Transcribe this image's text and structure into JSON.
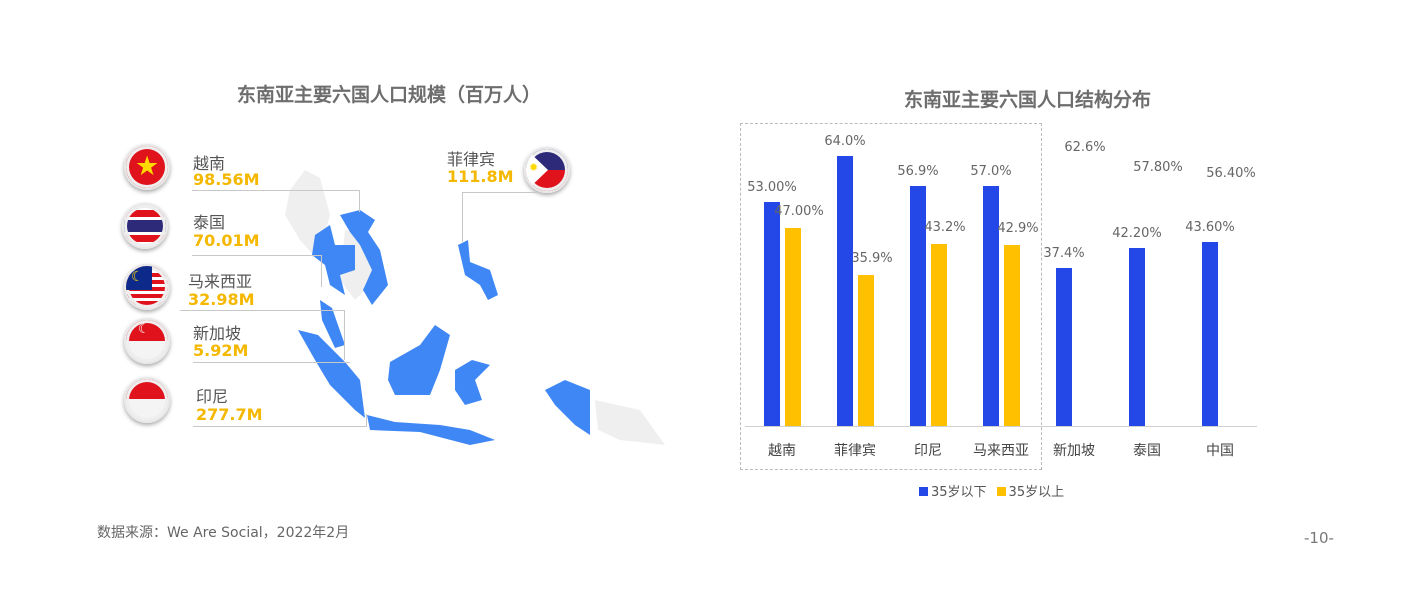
{
  "left": {
    "title": "东南亚主要六国人口规模（百万人）",
    "countries": [
      {
        "name": "越南",
        "value": "98.56M",
        "flag": "vietnam-flag"
      },
      {
        "name": "泰国",
        "value": "70.01M",
        "flag": "thailand-flag"
      },
      {
        "name": "马来西亚",
        "value": "32.98M",
        "flag": "malaysia-flag"
      },
      {
        "name": "新加坡",
        "value": "5.92M",
        "flag": "singapore-flag"
      },
      {
        "name": "印尼",
        "value": "277.7M",
        "flag": "indonesia-flag"
      },
      {
        "name": "菲律宾",
        "value": "111.8M",
        "flag": "philippines-flag"
      }
    ]
  },
  "chart_data": {
    "type": "bar",
    "title": "东南亚主要六国人口结构分布",
    "categories": [
      "越南",
      "菲律宾",
      "印尼",
      "马来西亚",
      "新加坡",
      "泰国",
      "中国"
    ],
    "series": [
      {
        "name": "35岁以下",
        "color": "#2447e8",
        "values": [
          53.0,
          64.0,
          56.9,
          57.0,
          37.4,
          42.2,
          43.6
        ],
        "labels": [
          "53.00%",
          "64.0%",
          "56.9%",
          "57.0%",
          "37.4%",
          "42.20%",
          "43.60%"
        ]
      },
      {
        "name": "35岁以上",
        "color": "#ffc000",
        "values": [
          47.0,
          35.9,
          43.2,
          42.9,
          62.6,
          57.8,
          56.4
        ],
        "labels": [
          "47.00%",
          "35.9%",
          "43.2%",
          "42.9%",
          "62.6%",
          "57.80%",
          "56.40%"
        ],
        "bar_visible": [
          true,
          true,
          true,
          true,
          false,
          false,
          false
        ]
      }
    ],
    "ylim": [
      0,
      70
    ],
    "grid": false,
    "legend": "bottom",
    "highlight_box_categories": [
      "越南",
      "菲律宾",
      "印尼",
      "马来西亚"
    ]
  },
  "colors": {
    "map": "#3f87f5",
    "map_gray": "#efefef",
    "value": "#f5b800"
  },
  "footer": {
    "source": "数据来源：We Are Social，2022年2月",
    "page": "-10-"
  }
}
